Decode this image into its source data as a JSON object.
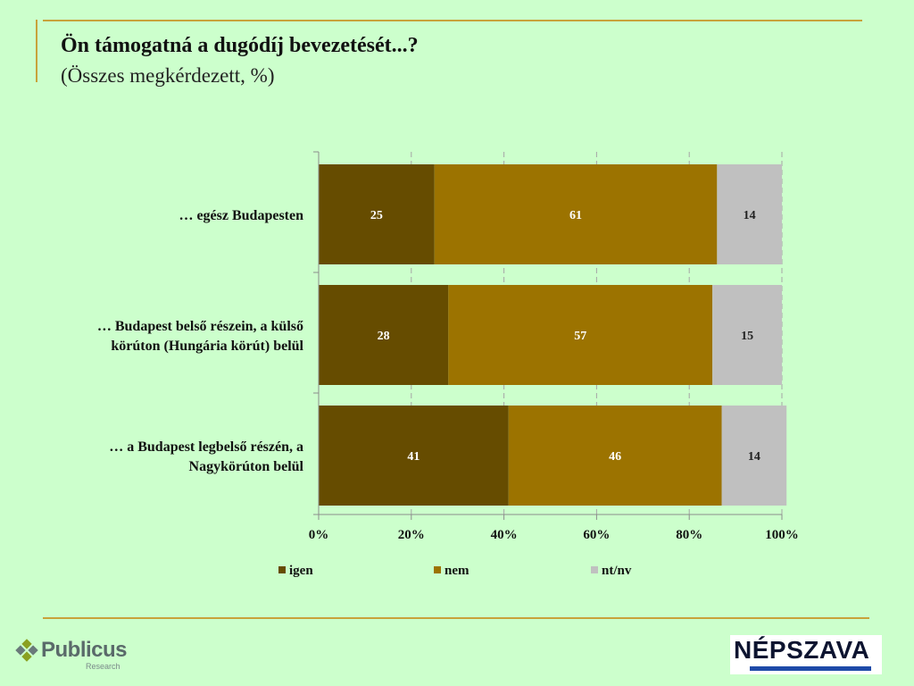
{
  "header": {
    "title": "Ön támogatná a dugódíj bevezetését...?",
    "subtitle": "(Összes megkérdezett, %)"
  },
  "chart_data": {
    "type": "bar",
    "orientation": "horizontal",
    "stacked": true,
    "categories": [
      [
        "… egész Budapesten"
      ],
      [
        "… Budapest belső részein, a külső",
        "körúton (Hungária körút) belül"
      ],
      [
        "… a Budapest legbelső részén, a",
        "Nagykörúton belül"
      ]
    ],
    "series": [
      {
        "name": "igen",
        "color": "#664c00",
        "values": [
          25,
          28,
          41
        ]
      },
      {
        "name": "nem",
        "color": "#9c7300",
        "values": [
          61,
          57,
          46
        ]
      },
      {
        "name": "nt/nv",
        "color": "#c0c0c0",
        "values": [
          14,
          15,
          14
        ]
      }
    ],
    "xlim": [
      0,
      100
    ],
    "xticks": [
      "0%",
      "20%",
      "40%",
      "60%",
      "80%",
      "100%"
    ],
    "grid": "vertical-dashed",
    "legend": "bottom"
  },
  "footer": {
    "left_logo": {
      "name": "Publicus",
      "sub": "Research"
    },
    "right_logo": {
      "name": "NÉPSZAVA"
    }
  }
}
